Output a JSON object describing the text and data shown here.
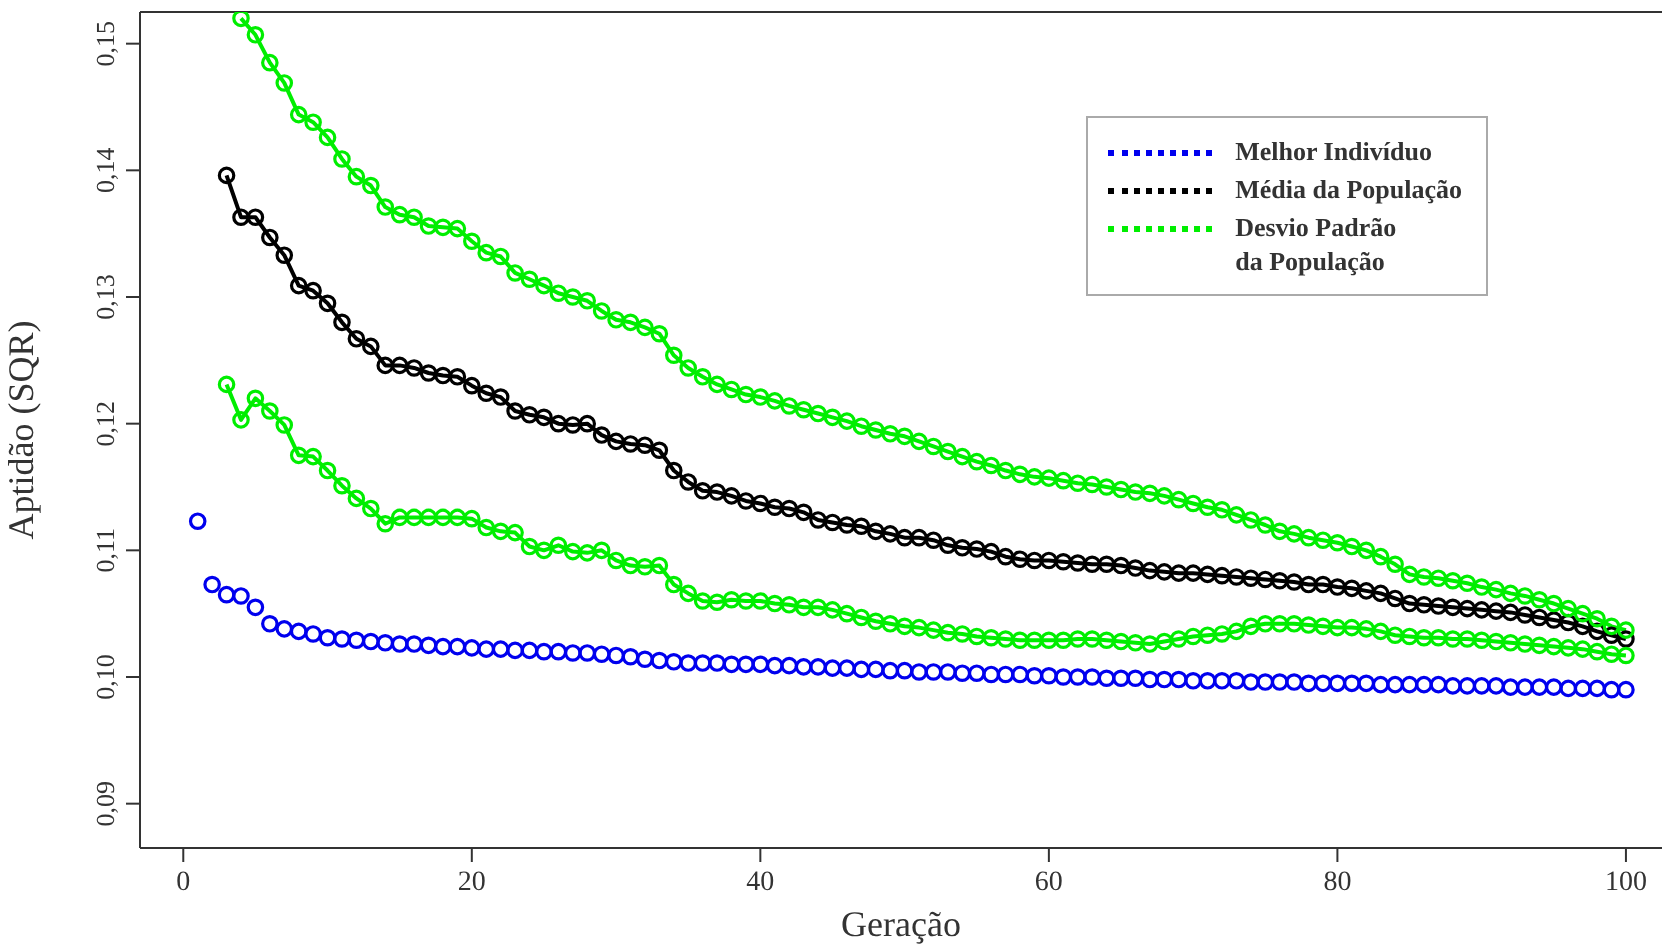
{
  "chart_data": {
    "type": "line",
    "xlabel": "Geração",
    "ylabel": "Aptidão (SQR)",
    "x": [
      1,
      2,
      3,
      4,
      5,
      6,
      7,
      8,
      9,
      10,
      11,
      12,
      13,
      14,
      15,
      16,
      17,
      18,
      19,
      20,
      21,
      22,
      23,
      24,
      25,
      26,
      27,
      28,
      29,
      30,
      31,
      32,
      33,
      34,
      35,
      36,
      37,
      38,
      39,
      40,
      41,
      42,
      43,
      44,
      45,
      46,
      47,
      48,
      49,
      50,
      51,
      52,
      53,
      54,
      55,
      56,
      57,
      58,
      59,
      60,
      61,
      62,
      63,
      64,
      65,
      66,
      67,
      68,
      69,
      70,
      71,
      72,
      73,
      74,
      75,
      76,
      77,
      78,
      79,
      80,
      81,
      82,
      83,
      84,
      85,
      86,
      87,
      88,
      89,
      90,
      91,
      92,
      93,
      94,
      95,
      96,
      97,
      98,
      99,
      100
    ],
    "series": [
      {
        "name": "Melhor Indivíduo",
        "type": "scatter",
        "color": "#0000ee",
        "values": [
          0.1123,
          0.1073,
          0.1065,
          0.1064,
          0.1055,
          0.1042,
          0.1038,
          0.1036,
          0.1034,
          0.1031,
          0.103,
          0.1029,
          0.1028,
          0.1027,
          0.1026,
          0.1026,
          0.1025,
          0.1024,
          0.1024,
          0.1023,
          0.1022,
          0.1022,
          0.1021,
          0.1021,
          0.102,
          0.102,
          0.1019,
          0.1019,
          0.1018,
          0.1017,
          0.1016,
          0.1014,
          0.1013,
          0.1012,
          0.1011,
          0.1011,
          0.1011,
          0.101,
          0.101,
          0.101,
          0.1009,
          0.1009,
          0.1008,
          0.1008,
          0.1007,
          0.1007,
          0.1006,
          0.1006,
          0.1005,
          0.1005,
          0.1004,
          0.1004,
          0.1004,
          0.1003,
          0.1003,
          0.1002,
          0.1002,
          0.1002,
          0.1001,
          0.1001,
          0.1,
          0.1,
          0.1,
          0.0999,
          0.0999,
          0.0999,
          0.0998,
          0.0998,
          0.0998,
          0.0997,
          0.0997,
          0.0997,
          0.0997,
          0.0996,
          0.0996,
          0.0996,
          0.0996,
          0.0995,
          0.0995,
          0.0995,
          0.0995,
          0.0995,
          0.0994,
          0.0994,
          0.0994,
          0.0994,
          0.0994,
          0.0993,
          0.0993,
          0.0993,
          0.0993,
          0.0992,
          0.0992,
          0.0992,
          0.0992,
          0.0991,
          0.0991,
          0.0991,
          0.099,
          0.099
        ]
      },
      {
        "name": "Média da População",
        "color": "#000000",
        "values": [
          null,
          null,
          0.1396,
          0.1363,
          0.1363,
          0.1347,
          0.1333,
          0.1309,
          0.1305,
          0.1295,
          0.128,
          0.1267,
          0.1261,
          0.1246,
          0.1246,
          0.1244,
          0.124,
          0.1238,
          0.1237,
          0.123,
          0.1224,
          0.1221,
          0.121,
          0.1207,
          0.1205,
          0.12,
          0.1199,
          0.12,
          0.1191,
          0.1186,
          0.1184,
          0.1183,
          0.1179,
          0.1163,
          0.1154,
          0.1147,
          0.1146,
          0.1143,
          0.1139,
          0.1137,
          0.1134,
          0.1133,
          0.113,
          0.1124,
          0.1122,
          0.112,
          0.1119,
          0.1115,
          0.1113,
          0.111,
          0.111,
          0.1108,
          0.1104,
          0.1102,
          0.1101,
          0.1099,
          0.1095,
          0.1093,
          0.1092,
          0.1092,
          0.1091,
          0.109,
          0.1089,
          0.1089,
          0.1088,
          0.1086,
          0.1084,
          0.1083,
          0.1082,
          0.1082,
          0.1081,
          0.108,
          0.1079,
          0.1078,
          0.1077,
          0.1076,
          0.1075,
          0.1073,
          0.1073,
          0.1071,
          0.107,
          0.1068,
          0.1066,
          0.1062,
          0.1058,
          0.1057,
          0.1056,
          0.1055,
          0.1054,
          0.1053,
          0.1052,
          0.1051,
          0.1049,
          0.1047,
          0.1045,
          0.1043,
          0.104,
          0.1036,
          0.1033,
          0.103
        ]
      },
      {
        "name": "Desvio Padrão\nda População",
        "color": "#00ee00",
        "values": [
          null,
          null,
          null,
          0.152,
          0.1507,
          0.1485,
          0.1469,
          0.1444,
          0.1438,
          0.1426,
          0.1409,
          0.1395,
          0.1388,
          0.1371,
          0.1365,
          0.1363,
          0.1356,
          0.1355,
          0.1354,
          0.1344,
          0.1335,
          0.1332,
          0.1319,
          0.1314,
          0.1309,
          0.1303,
          0.13,
          0.1297,
          0.1289,
          0.1282,
          0.128,
          0.1276,
          0.1271,
          0.1254,
          0.1244,
          0.1237,
          0.1231,
          0.1227,
          0.1223,
          0.1221,
          0.1218,
          0.1214,
          0.1211,
          0.1208,
          0.1205,
          0.1202,
          0.1198,
          0.1195,
          0.1192,
          0.119,
          0.1186,
          0.1182,
          0.1178,
          0.1174,
          0.117,
          0.1167,
          0.1163,
          0.116,
          0.1158,
          0.1157,
          0.1155,
          0.1153,
          0.1152,
          0.115,
          0.1148,
          0.1146,
          0.1145,
          0.1143,
          0.114,
          0.1137,
          0.1134,
          0.1132,
          0.1128,
          0.1124,
          0.112,
          0.1115,
          0.1113,
          0.111,
          0.1108,
          0.1106,
          0.1103,
          0.11,
          0.1095,
          0.1089,
          0.1081,
          0.1079,
          0.1078,
          0.1076,
          0.1074,
          0.1071,
          0.1069,
          0.1066,
          0.1064,
          0.1061,
          0.1058,
          0.1054,
          0.105,
          0.1046,
          0.104,
          0.1037
        ]
      },
      {
        "color": "#00ee00",
        "values": [
          null,
          null,
          0.1231,
          0.1203,
          0.122,
          0.121,
          0.1199,
          0.1175,
          0.1174,
          0.1163,
          0.1151,
          0.1141,
          0.1133,
          0.1121,
          0.1126,
          0.1126,
          0.1126,
          0.1126,
          0.1126,
          0.1125,
          0.1118,
          0.1115,
          0.1114,
          0.1103,
          0.11,
          0.1104,
          0.1099,
          0.1098,
          0.11,
          0.1092,
          0.1088,
          0.1087,
          0.1088,
          0.1073,
          0.1066,
          0.106,
          0.1059,
          0.1061,
          0.106,
          0.106,
          0.1058,
          0.1057,
          0.1055,
          0.1055,
          0.1053,
          0.105,
          0.1047,
          0.1044,
          0.1042,
          0.104,
          0.1039,
          0.1037,
          0.1035,
          0.1034,
          0.1032,
          0.1031,
          0.103,
          0.1029,
          0.1029,
          0.1029,
          0.1029,
          0.103,
          0.103,
          0.1029,
          0.1028,
          0.1027,
          0.1026,
          0.1028,
          0.103,
          0.1032,
          0.1033,
          0.1034,
          0.1036,
          0.104,
          0.1042,
          0.1042,
          0.1042,
          0.1041,
          0.104,
          0.1039,
          0.1039,
          0.1038,
          0.1036,
          0.1033,
          0.1032,
          0.1031,
          0.1031,
          0.103,
          0.103,
          0.1029,
          0.1028,
          0.1027,
          0.1026,
          0.1025,
          0.1024,
          0.1023,
          0.1022,
          0.102,
          0.1018,
          0.1017
        ]
      }
    ],
    "xlim": [
      -3,
      102.5
    ],
    "xticks": [
      0,
      20,
      40,
      60,
      80,
      100
    ],
    "ylim": [
      0.0865,
      0.1525
    ],
    "yticks": [
      {
        "value": 0.09,
        "label": "0,09"
      },
      {
        "value": 0.1,
        "label": "0,10"
      },
      {
        "value": 0.11,
        "label": "0,11"
      },
      {
        "value": 0.12,
        "label": "0,12"
      },
      {
        "value": 0.13,
        "label": "0,13"
      },
      {
        "value": 0.14,
        "label": "0,14"
      },
      {
        "value": 0.15,
        "label": "0,15"
      }
    ],
    "grid": false,
    "legend": "top right",
    "marker": "circle"
  }
}
